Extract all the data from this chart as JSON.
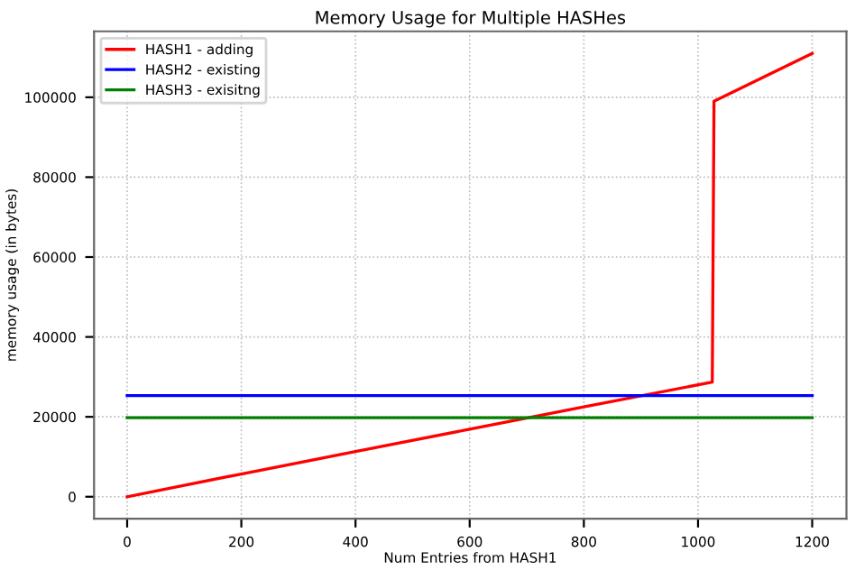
{
  "chart_data": {
    "type": "line",
    "title": "Memory Usage for Multiple HASHes",
    "xlabel": "Num Entries from HASH1",
    "ylabel": "memory usage (in bytes)",
    "series": [
      {
        "name": "HASH1 - adding",
        "color": "#ff0000",
        "x": [
          0,
          200,
          400,
          600,
          800,
          1025,
          1028,
          1200
        ],
        "values": [
          0,
          5700,
          11300,
          16900,
          22500,
          28700,
          99000,
          111000
        ]
      },
      {
        "name": "HASH2 - existing",
        "color": "#0000ff",
        "x": [
          0,
          1200
        ],
        "values": [
          25300,
          25300
        ]
      },
      {
        "name": "HASH3 - exisitng",
        "color": "#008000",
        "x": [
          0,
          1200
        ],
        "values": [
          19800,
          19800
        ]
      }
    ],
    "xlim": [
      -58,
      1260
    ],
    "ylim": [
      -5500,
      116500
    ],
    "xticks": [
      0,
      200,
      400,
      600,
      800,
      1000,
      1200
    ],
    "yticks": [
      0,
      20000,
      40000,
      60000,
      80000,
      100000
    ],
    "grid": true,
    "legend": "top left",
    "line_style": "solid",
    "marker": "none"
  }
}
